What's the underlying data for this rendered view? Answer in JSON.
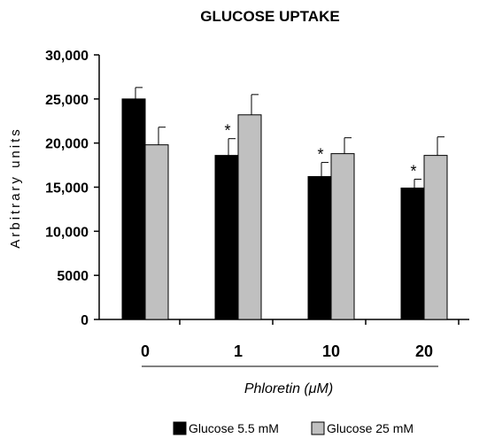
{
  "chart_data": {
    "type": "bar",
    "title": "GLUCOSE UPTAKE",
    "xlabel": "Phloretin (μM)",
    "ylabel": "Arbitrary units",
    "categories": [
      "0",
      "1",
      "10",
      "20"
    ],
    "ylim": [
      0,
      30000
    ],
    "yticks": [
      0,
      5000,
      10000,
      15000,
      20000,
      25000,
      30000
    ],
    "ytick_labels": [
      "0",
      "5000",
      "10,000",
      "15,000",
      "20,000",
      "25,000",
      "30,000"
    ],
    "series": [
      {
        "name": "Glucose 5.5 mM",
        "color": "#000000",
        "values": [
          25000,
          18600,
          16200,
          14900
        ],
        "errors": [
          1300,
          1900,
          1600,
          1000
        ],
        "annotations": [
          "",
          "*",
          "*",
          "*"
        ]
      },
      {
        "name": "Glucose 25 mM",
        "color": "#c0c0c0",
        "values": [
          19800,
          23200,
          18800,
          18600
        ],
        "errors": [
          2000,
          2300,
          1800,
          2100
        ],
        "annotations": [
          "",
          "",
          "",
          ""
        ]
      }
    ],
    "grid": false,
    "legend_position": "bottom"
  }
}
